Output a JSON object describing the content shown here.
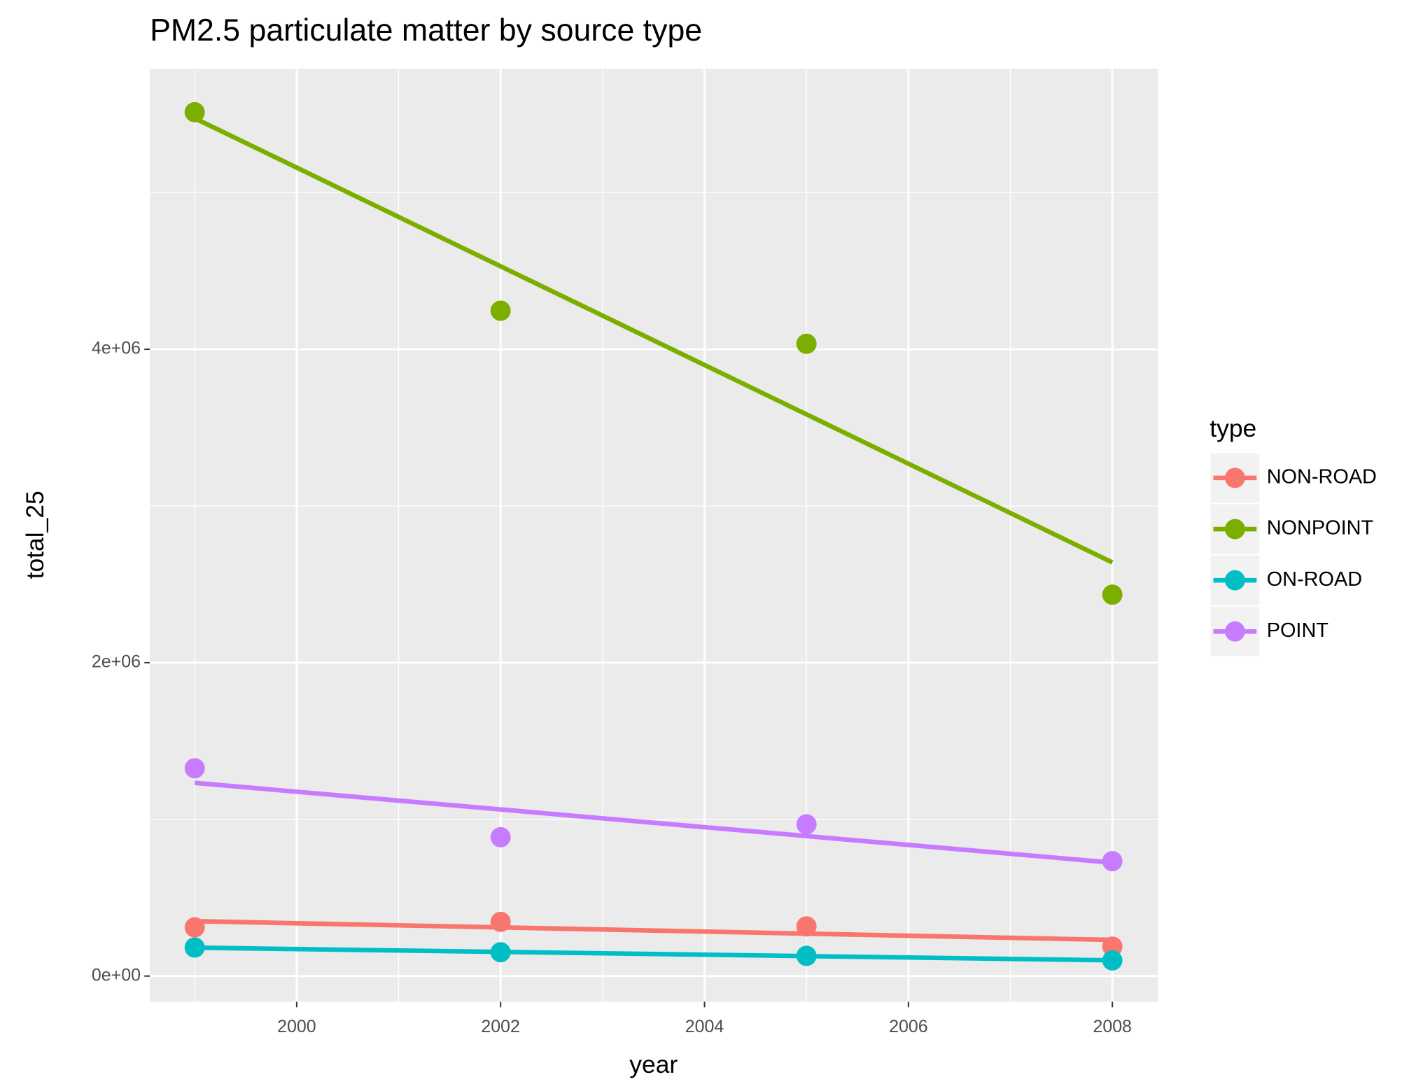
{
  "chart_data": {
    "type": "scatter",
    "title": "PM2.5 particulate matter by source type",
    "x_label": "year",
    "y_label": "total_25",
    "legend_title": "type",
    "x": [
      1999,
      2002,
      2005,
      2008
    ],
    "series": [
      {
        "name": "NON-ROAD",
        "color": "#F8766D",
        "values": [
          311000,
          346000,
          317000,
          188000
        ]
      },
      {
        "name": "NONPOINT",
        "color": "#7CAE00",
        "values": [
          5513000,
          4246000,
          4035000,
          2434000
        ]
      },
      {
        "name": "ON-ROAD",
        "color": "#00BFC4",
        "values": [
          182000,
          152000,
          129000,
          100000
        ]
      },
      {
        "name": "POINT",
        "color": "#C77CFF",
        "values": [
          1326000,
          886000,
          968000,
          733000
        ]
      }
    ],
    "trend_line": true,
    "xlim": [
      1998.56,
      2008.45
    ],
    "xticks": [
      2000,
      2002,
      2004,
      2006,
      2008
    ],
    "ylim": [
      -164000,
      5789000
    ],
    "yticks": [
      {
        "value": 0,
        "label": "0e+00"
      },
      {
        "value": 2000000,
        "label": "2e+06"
      },
      {
        "value": 4000000,
        "label": "4e+06"
      }
    ],
    "grid": true,
    "legend": "right"
  }
}
